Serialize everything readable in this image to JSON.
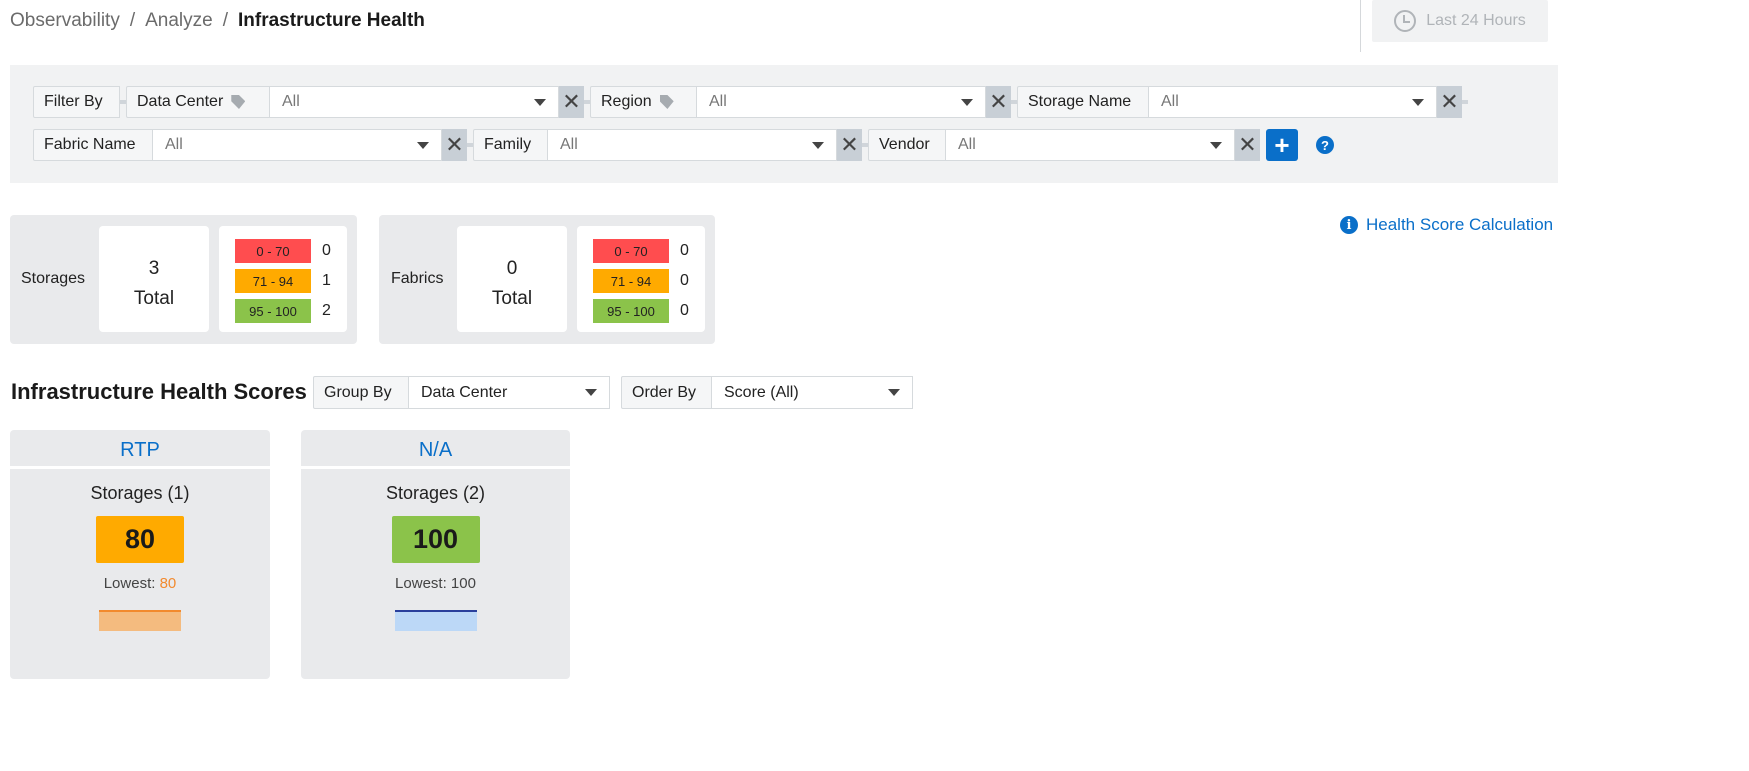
{
  "breadcrumb": [
    "Observability",
    "Analyze",
    "Infrastructure Health"
  ],
  "time_range": "Last 24 Hours",
  "filters": {
    "filter_by_label": "Filter By",
    "items": [
      {
        "label": "Data Center",
        "value": "All",
        "tagged": true
      },
      {
        "label": "Region",
        "value": "All",
        "tagged": true
      },
      {
        "label": "Storage Name",
        "value": "All"
      },
      {
        "label": "Fabric Name",
        "value": "All"
      },
      {
        "label": "Family",
        "value": "All"
      },
      {
        "label": "Vendor",
        "value": "All"
      }
    ],
    "add_label": "+",
    "help_label": "?"
  },
  "summary": {
    "storages": {
      "label": "Storages",
      "count": "3",
      "total_label": "Total",
      "ranges": [
        {
          "range": "0 - 70",
          "count": "0"
        },
        {
          "range": "71 - 94",
          "count": "1"
        },
        {
          "range": "95 - 100",
          "count": "2"
        }
      ]
    },
    "fabrics": {
      "label": "Fabrics",
      "count": "0",
      "total_label": "Total",
      "ranges": [
        {
          "range": "0 - 70",
          "count": "0"
        },
        {
          "range": "71 - 94",
          "count": "0"
        },
        {
          "range": "95 - 100",
          "count": "0"
        }
      ]
    }
  },
  "health_link": "Health Score Calculation",
  "section": {
    "title": "Infrastructure Health Scores",
    "group_by_label": "Group By",
    "group_by_value": "Data Center",
    "order_by_label": "Order By",
    "order_by_value": "Score (All)"
  },
  "groups": [
    {
      "name": "RTP",
      "subtitle": "Storages (1)",
      "score": "80",
      "lowest_label": "Lowest:",
      "lowest": "80",
      "color": "#ffaa00"
    },
    {
      "name": "N/A",
      "subtitle": "Storages (2)",
      "score": "100",
      "lowest_label": "Lowest:",
      "lowest": "100",
      "color": "#8bc34a"
    }
  ],
  "colors": {
    "red": "#ff4d4f",
    "orange": "#ffaa00",
    "green": "#8bc34a",
    "accent": "#0a6fc9"
  }
}
